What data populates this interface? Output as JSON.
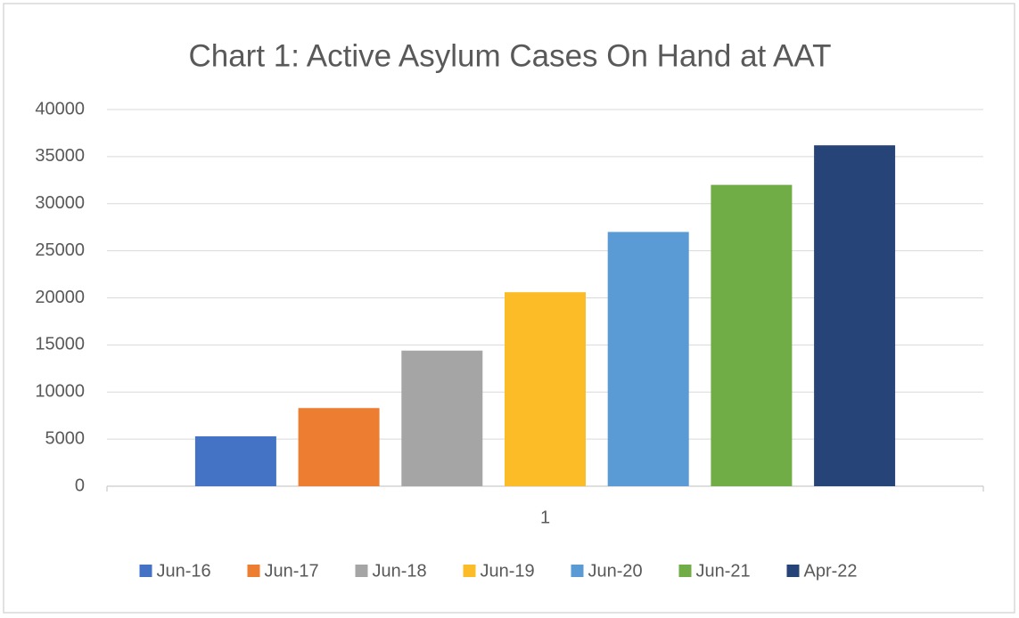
{
  "chart_data": {
    "type": "bar",
    "title": "Chart 1: Active Asylum Cases On Hand at AAT",
    "categories": [
      "1"
    ],
    "series": [
      {
        "name": "Jun-16",
        "color": "#4472c4",
        "values": [
          5300
        ]
      },
      {
        "name": "Jun-17",
        "color": "#ed7d31",
        "values": [
          8300
        ]
      },
      {
        "name": "Jun-18",
        "color": "#a5a5a5",
        "values": [
          14400
        ]
      },
      {
        "name": "Jun-19",
        "color": "#fbbc28",
        "values": [
          20600
        ]
      },
      {
        "name": "Jun-20",
        "color": "#5b9bd5",
        "values": [
          27000
        ]
      },
      {
        "name": "Jun-21",
        "color": "#70ad47",
        "values": [
          32000
        ]
      },
      {
        "name": "Apr-22",
        "color": "#264478",
        "values": [
          36200
        ]
      }
    ],
    "ylim": [
      0,
      40000
    ],
    "yticks": [
      0,
      5000,
      10000,
      15000,
      20000,
      25000,
      30000,
      35000,
      40000
    ],
    "grid": true,
    "legend": "bottom"
  }
}
